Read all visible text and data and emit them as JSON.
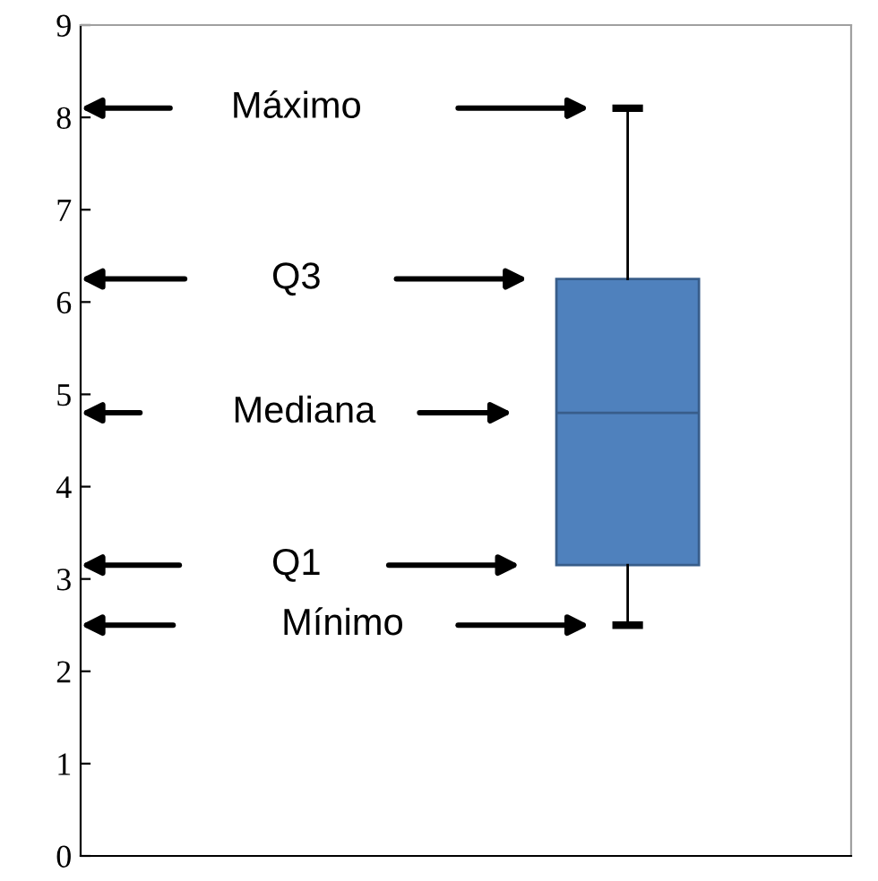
{
  "chart_data": {
    "type": "box",
    "categories": [
      null
    ],
    "boxes": [
      {
        "low": 2.5,
        "q1": 3.15,
        "median": 4.8,
        "q3": 6.25,
        "high": 8.1
      }
    ],
    "color": "#4f81bd",
    "ylim": [
      0,
      9
    ],
    "yticks": [
      0,
      1,
      2,
      3,
      4,
      5,
      6,
      7,
      8,
      9
    ],
    "grid": false,
    "annotations": [
      "Máximo",
      "Q3",
      "Mediana",
      "Q1",
      "Mínimo"
    ]
  }
}
